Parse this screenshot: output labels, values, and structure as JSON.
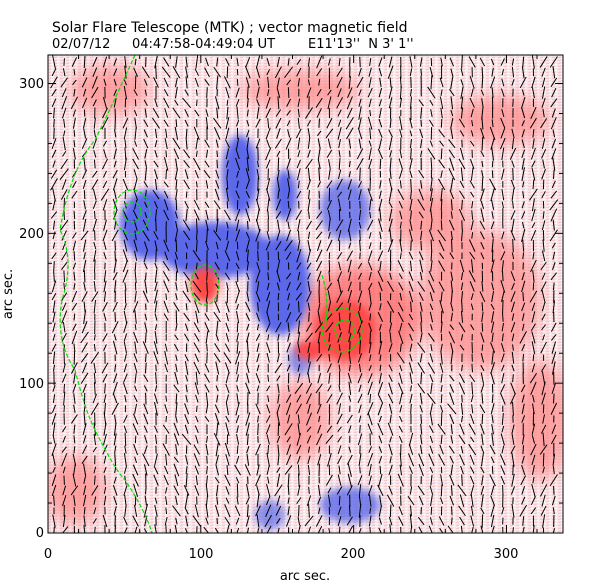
{
  "header": {
    "title": "Solar Flare Telescope (MTK) ; vector magnetic field",
    "subtitle_date": "02/07/12",
    "subtitle_time": "04:47:58-04:49:04 UT",
    "subtitle_position": "E11'13''  N 3' 1''"
  },
  "chart_data": {
    "type": "heatmap",
    "title": "Solar Flare Telescope (MTK) ; vector magnetic field",
    "xlabel": "arc sec.",
    "ylabel": "arc sec.",
    "xlim": [
      0,
      337
    ],
    "ylim": [
      0,
      319
    ],
    "x_ticks": [
      "0",
      "100",
      "200",
      "300"
    ],
    "y_ticks": [
      "0",
      "100",
      "200",
      "300"
    ],
    "x_tick_values": [
      0,
      100,
      200,
      300
    ],
    "y_tick_values": [
      0,
      100,
      200,
      300
    ],
    "colors": {
      "positive": "#ff5050",
      "negative": "#5060e8",
      "contour": "#00e000",
      "vector": "#000000"
    },
    "overlays": [
      "transverse field vectors",
      "contours"
    ]
  }
}
